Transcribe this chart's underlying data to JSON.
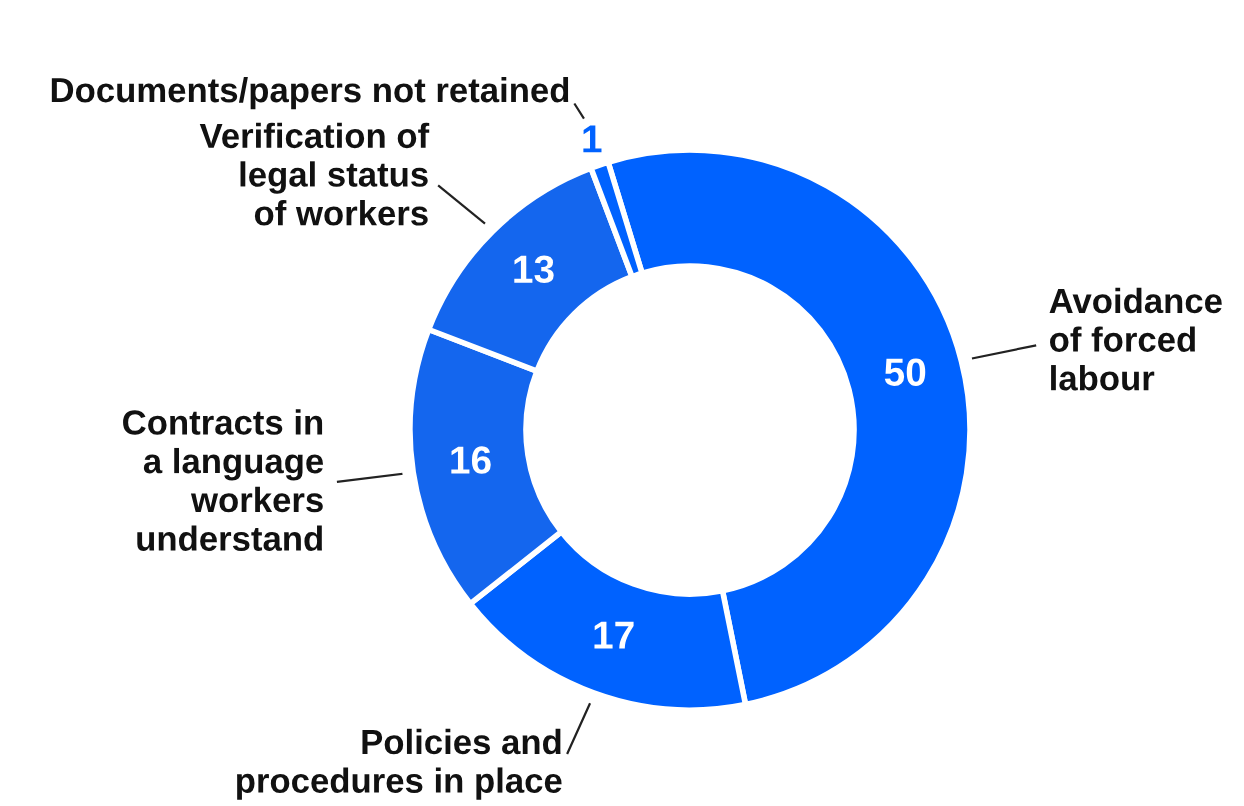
{
  "chart_data": {
    "type": "donut",
    "categories": [
      "Avoidance\nof forced\nlabour",
      "Policies and\nprocedures in place",
      "Contracts in\na language\nworkers\nunderstand",
      "Verification of\nlegal status\nof workers",
      "Documents/papers not retained"
    ],
    "values": [
      50,
      17,
      16,
      13,
      1
    ],
    "colors": [
      "#0062ff",
      "#0062ff",
      "#1466ee",
      "#1466ee",
      "#0062ff"
    ],
    "data_labels": true,
    "legend": false
  }
}
